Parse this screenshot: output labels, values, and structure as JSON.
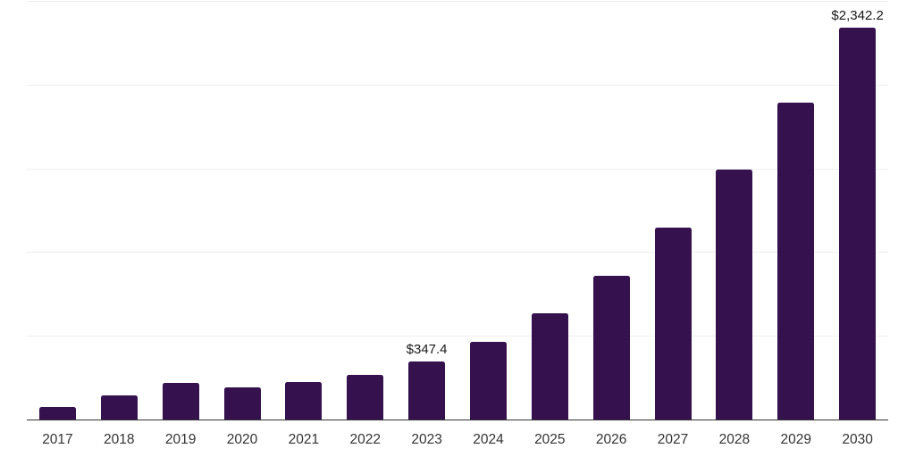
{
  "chart_data": {
    "type": "bar",
    "title": "",
    "xlabel": "",
    "ylabel": "",
    "categories": [
      "2017",
      "2018",
      "2019",
      "2020",
      "2021",
      "2022",
      "2023",
      "2024",
      "2025",
      "2026",
      "2027",
      "2028",
      "2029",
      "2030"
    ],
    "values": [
      76,
      146,
      219,
      190,
      222,
      268,
      347.4,
      466,
      632,
      860,
      1146,
      1492,
      1894,
      2342.2
    ],
    "value_labels": {
      "2023": "$347.4",
      "2030": "$2,342.2"
    },
    "ylim": [
      0,
      2500
    ],
    "gridline_interval": 500,
    "grid": "horizontal",
    "legend": "none",
    "colors": {
      "bar": "#35114E",
      "gridline": "#efefef",
      "axis_line": "#333333",
      "tick_label": "#333333",
      "value_label": "#1a1a1a",
      "background": "#ffffff"
    }
  }
}
